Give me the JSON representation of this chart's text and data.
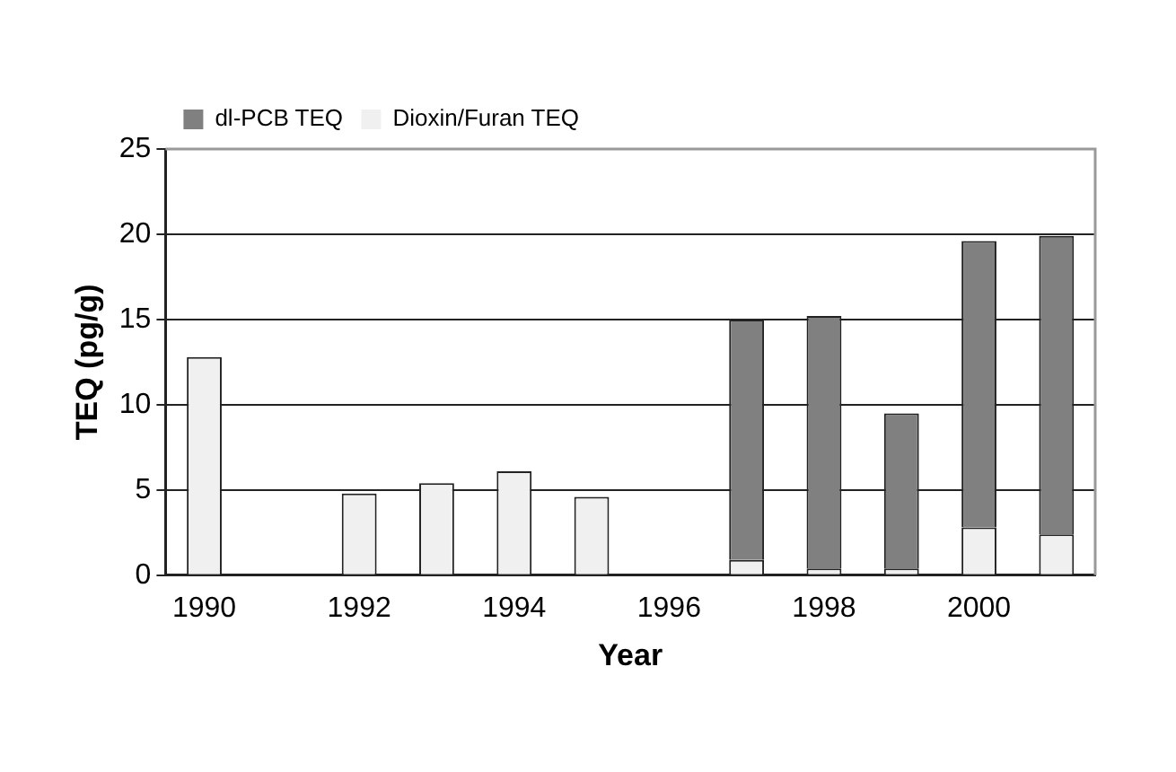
{
  "chart_data": {
    "type": "bar",
    "stacked": true,
    "xlabel": "Year",
    "ylabel": "TEQ (pg/g)",
    "categories": [
      "1990",
      null,
      "1992",
      null,
      "1994",
      null,
      "1996",
      null,
      "1998",
      null,
      "2000",
      null
    ],
    "series": [
      {
        "name": "Dioxin/Furan TEQ",
        "color": "#f0f0f0",
        "values": [
          12.8,
          null,
          4.8,
          5.4,
          6.1,
          4.6,
          null,
          0.9,
          0.4,
          0.4,
          2.8,
          2.4
        ]
      },
      {
        "name": "dl-PCB TEQ",
        "color": "#808080",
        "values": [
          null,
          null,
          null,
          null,
          null,
          null,
          null,
          14.1,
          14.8,
          9.1,
          16.8,
          17.5
        ]
      }
    ],
    "ylim": [
      0,
      25
    ],
    "yticks": [
      0,
      5,
      10,
      15,
      20,
      25
    ],
    "grid": "y",
    "legend": "top left"
  }
}
